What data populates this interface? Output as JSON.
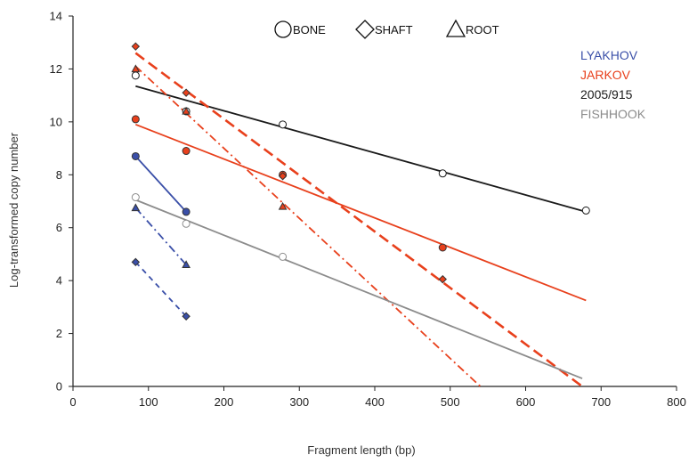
{
  "chart_data": {
    "type": "scatter",
    "xlabel": "Fragment length (bp)",
    "ylabel": "Log-transformed copy number",
    "xlim": [
      0,
      800
    ],
    "ylim": [
      0,
      14
    ],
    "x_ticks": [
      "0",
      "100",
      "200",
      "300",
      "400",
      "500",
      "600",
      "700",
      "800"
    ],
    "y_ticks": [
      "0",
      "2",
      "4",
      "6",
      "8",
      "10",
      "12",
      "14"
    ],
    "grid": false,
    "shape_legend": [
      {
        "label": "BONE",
        "shape": "circle"
      },
      {
        "label": "SHAFT",
        "shape": "diamond"
      },
      {
        "label": "ROOT",
        "shape": "triangle"
      }
    ],
    "sample_legend": [
      {
        "label": "LYAKHOV",
        "color": "#3a4fa8"
      },
      {
        "label": "JARKOV",
        "color": "#e8401c"
      },
      {
        "label": "2005/915",
        "color": "#1a1a1a"
      },
      {
        "label": "FISHHOOK",
        "color": "#8c8c8c"
      }
    ],
    "series": [
      {
        "sample": "2005/915",
        "tissue": "BONE",
        "color": "#1a1a1a",
        "shape": "circle",
        "filled": false,
        "points": [
          [
            83,
            11.75
          ],
          [
            150,
            10.4
          ],
          [
            278,
            9.9
          ],
          [
            490,
            8.05
          ],
          [
            680,
            6.65
          ]
        ],
        "fit": {
          "x": [
            83,
            680
          ],
          "y": [
            11.35,
            6.6
          ]
        },
        "dash": "solid"
      },
      {
        "sample": "JARKOV",
        "tissue": "BONE",
        "color": "#e8401c",
        "shape": "circle",
        "filled": true,
        "points": [
          [
            83,
            10.1
          ],
          [
            150,
            8.9
          ],
          [
            278,
            8.0
          ],
          [
            490,
            5.25
          ]
        ],
        "fit": {
          "x": [
            83,
            680
          ],
          "y": [
            9.9,
            3.25
          ]
        },
        "dash": "solid"
      },
      {
        "sample": "JARKOV",
        "tissue": "SHAFT",
        "color": "#e8401c",
        "shape": "diamond",
        "filled": true,
        "points": [
          [
            83,
            12.85
          ],
          [
            150,
            11.1
          ],
          [
            278,
            7.95
          ],
          [
            490,
            4.05
          ]
        ],
        "fit": {
          "x": [
            83,
            675
          ],
          "y": [
            12.6,
            0.0
          ]
        },
        "dash": "long"
      },
      {
        "sample": "JARKOV",
        "tissue": "ROOT",
        "color": "#e8401c",
        "shape": "triangle",
        "filled": true,
        "points": [
          [
            83,
            12.0
          ],
          [
            150,
            10.4
          ],
          [
            278,
            6.8
          ]
        ],
        "fit": {
          "x": [
            83,
            540
          ],
          "y": [
            12.1,
            0.0
          ]
        },
        "dash": "dashdot"
      },
      {
        "sample": "FISHHOOK",
        "tissue": "BONE",
        "color": "#8c8c8c",
        "shape": "circle",
        "filled": false,
        "points": [
          [
            83,
            7.15
          ],
          [
            150,
            6.15
          ],
          [
            278,
            4.9
          ]
        ],
        "fit": {
          "x": [
            83,
            675
          ],
          "y": [
            7.05,
            0.3
          ]
        },
        "dash": "solid"
      },
      {
        "sample": "LYAKHOV",
        "tissue": "BONE",
        "color": "#3a4fa8",
        "shape": "circle",
        "filled": true,
        "points": [
          [
            83,
            8.7
          ],
          [
            150,
            6.6
          ]
        ],
        "fit": {
          "x": [
            83,
            150
          ],
          "y": [
            8.7,
            6.6
          ]
        },
        "dash": "solid"
      },
      {
        "sample": "LYAKHOV",
        "tissue": "ROOT",
        "color": "#3a4fa8",
        "shape": "triangle",
        "filled": true,
        "points": [
          [
            83,
            6.75
          ],
          [
            150,
            4.6
          ]
        ],
        "fit": {
          "x": [
            83,
            150
          ],
          "y": [
            6.75,
            4.6
          ]
        },
        "dash": "dashdot"
      },
      {
        "sample": "LYAKHOV",
        "tissue": "SHAFT",
        "color": "#3a4fa8",
        "shape": "diamond",
        "filled": true,
        "points": [
          [
            83,
            4.7
          ],
          [
            150,
            2.65
          ]
        ],
        "fit": {
          "x": [
            83,
            150
          ],
          "y": [
            4.7,
            2.65
          ]
        },
        "dash": "dash"
      }
    ]
  }
}
